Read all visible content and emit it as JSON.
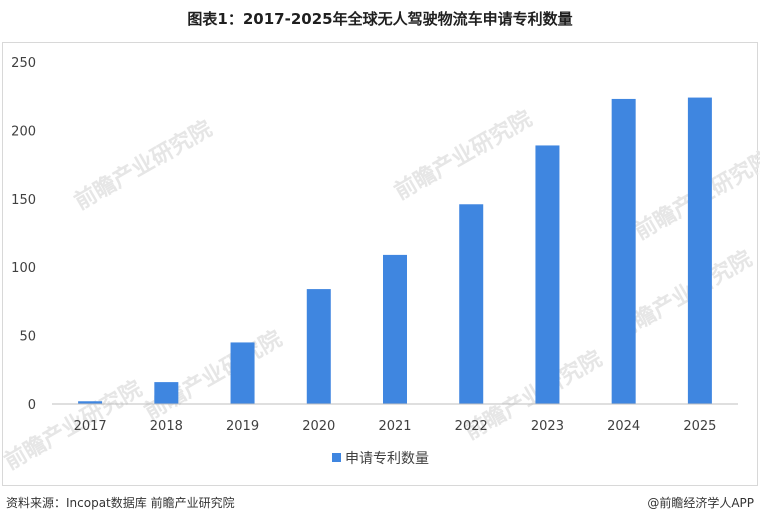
{
  "title": "图表1：2017-2025年全球无人驾驶物流车申请专利数量",
  "footer": {
    "source": "资料来源：Incopat数据库 前瞻产业研究院",
    "brand": "@前瞻经济学人APP"
  },
  "watermark": "前瞻产业研究院",
  "colors": {
    "bar": "#3f86e0",
    "axis": "#bfbfbf",
    "text": "#404040"
  },
  "chart_data": {
    "type": "bar",
    "title": "图表1：2017-2025年全球无人驾驶物流车申请专利数量",
    "categories": [
      "2017",
      "2018",
      "2019",
      "2020",
      "2021",
      "2022",
      "2023",
      "2024",
      "2025"
    ],
    "series": [
      {
        "name": "申请专利数量",
        "values": [
          2,
          16,
          45,
          84,
          109,
          146,
          189,
          223,
          224
        ]
      }
    ],
    "yticks": [
      0,
      50,
      100,
      150,
      200,
      250
    ],
    "ylim": [
      0,
      250
    ],
    "xlabel": "",
    "ylabel": "",
    "grid": false,
    "legend_position": "bottom"
  }
}
